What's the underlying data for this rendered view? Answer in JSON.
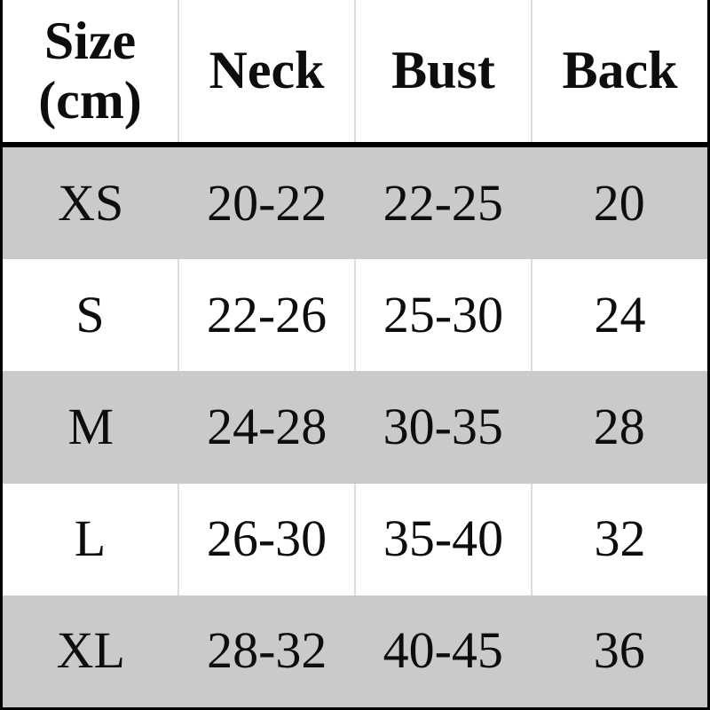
{
  "table": {
    "header": {
      "size_line1": "Size",
      "size_line2": "(cm)",
      "neck": "Neck",
      "bust": "Bust",
      "back": "Back"
    },
    "rows": [
      {
        "size": "XS",
        "neck": "20-22",
        "bust": "22-25",
        "back": "20"
      },
      {
        "size": "S",
        "neck": "22-26",
        "bust": "25-30",
        "back": "24"
      },
      {
        "size": "M",
        "neck": "24-28",
        "bust": "30-35",
        "back": "28"
      },
      {
        "size": "L",
        "neck": "26-30",
        "bust": "35-40",
        "back": "32"
      },
      {
        "size": "XL",
        "neck": "28-32",
        "bust": "40-45",
        "back": "36"
      }
    ]
  },
  "colors": {
    "row_alt_bg": "#cacaca",
    "divider": "#dcdcdc",
    "border": "#000000",
    "text": "#0d0d0d"
  }
}
